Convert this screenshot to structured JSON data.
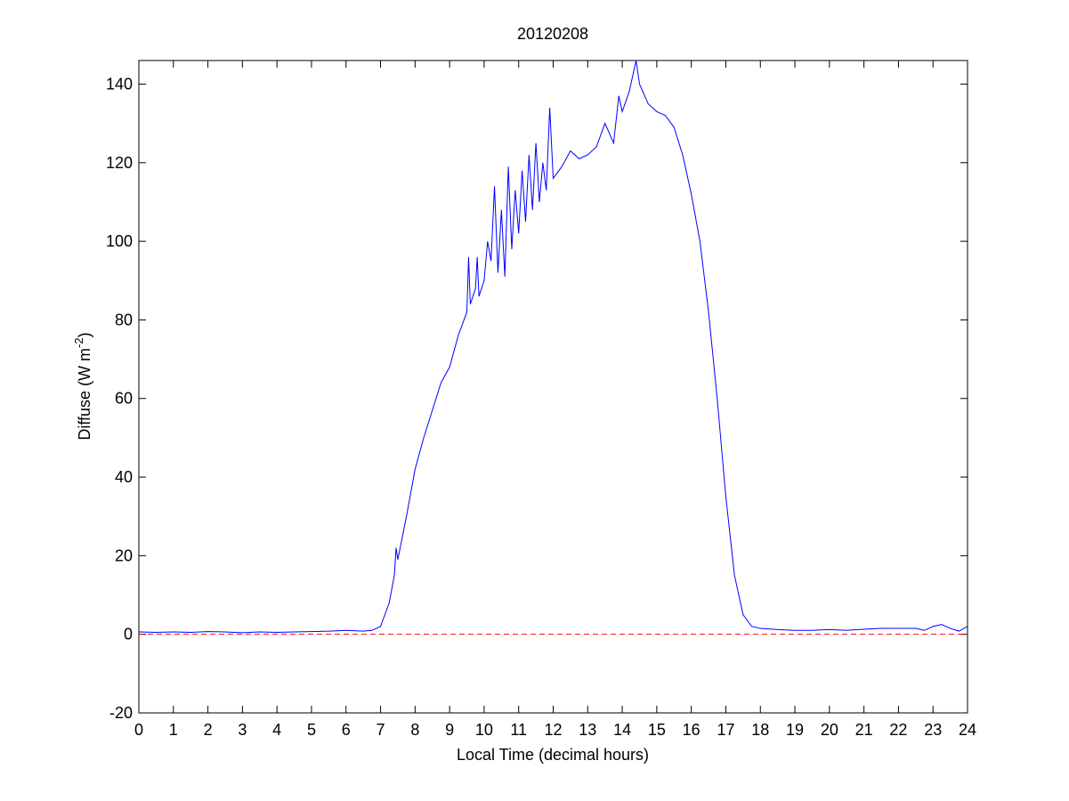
{
  "chart_data": {
    "type": "line",
    "title": "20120208",
    "xlabel": "Local Time (decimal hours)",
    "ylabel": [
      "Diffuse (W m",
      "-2",
      ")"
    ],
    "xlim": [
      0,
      24
    ],
    "ylim": [
      -20,
      146
    ],
    "xticks": [
      0,
      1,
      2,
      3,
      4,
      5,
      6,
      7,
      8,
      9,
      10,
      11,
      12,
      13,
      14,
      15,
      16,
      17,
      18,
      19,
      20,
      21,
      22,
      23,
      24
    ],
    "yticks": [
      -20,
      0,
      20,
      40,
      60,
      80,
      100,
      120,
      140
    ],
    "reference_line": {
      "value": 0,
      "color": "#ff0000"
    },
    "x": [
      0,
      0.5,
      1,
      1.5,
      2,
      2.5,
      3,
      3.5,
      4,
      4.5,
      5,
      5.5,
      6,
      6.5,
      6.75,
      7,
      7.25,
      7.4,
      7.45,
      7.5,
      7.75,
      8,
      8.25,
      8.5,
      8.75,
      9,
      9.25,
      9.5,
      9.55,
      9.6,
      9.75,
      9.8,
      9.85,
      10,
      10.1,
      10.2,
      10.3,
      10.4,
      10.5,
      10.6,
      10.7,
      10.8,
      10.9,
      11,
      11.1,
      11.2,
      11.3,
      11.4,
      11.5,
      11.6,
      11.7,
      11.8,
      11.9,
      12,
      12.25,
      12.5,
      12.75,
      13,
      13.25,
      13.5,
      13.75,
      13.9,
      14,
      14.2,
      14.4,
      14.5,
      14.75,
      15,
      15.25,
      15.5,
      15.75,
      16,
      16.25,
      16.5,
      16.75,
      17,
      17.25,
      17.5,
      17.75,
      18,
      18.5,
      19,
      19.5,
      20,
      20.5,
      21,
      21.5,
      22,
      22.5,
      22.75,
      23,
      23.25,
      23.5,
      23.75,
      24
    ],
    "series": [
      {
        "color": "#0000ff",
        "values": [
          0.6,
          0.5,
          0.6,
          0.5,
          0.7,
          0.6,
          0.4,
          0.6,
          0.5,
          0.6,
          0.7,
          0.8,
          1.0,
          0.8,
          1.0,
          2,
          8,
          15,
          22,
          19,
          30,
          42,
          50,
          57,
          64,
          68,
          76,
          82,
          96,
          84,
          88,
          96,
          86,
          90,
          100,
          95,
          114,
          92,
          108,
          91,
          119,
          98,
          113,
          102,
          118,
          105,
          122,
          108,
          125,
          110,
          120,
          113,
          134,
          116,
          119,
          123,
          121,
          122,
          124,
          130,
          125,
          137,
          133,
          138,
          146,
          140,
          135,
          133,
          132,
          129,
          122,
          112,
          100,
          82,
          60,
          35,
          15,
          5,
          2,
          1.5,
          1.2,
          1,
          1,
          1.2,
          1,
          1.3,
          1.5,
          1.5,
          1.5,
          1,
          2,
          2.5,
          1.5,
          0.8,
          2
        ]
      }
    ]
  }
}
